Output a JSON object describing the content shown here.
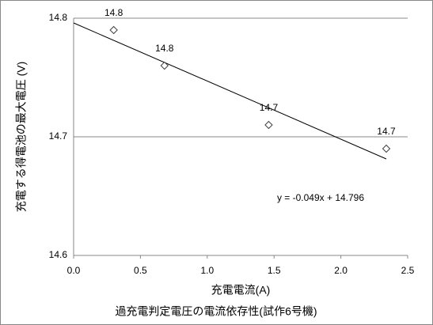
{
  "chart_data": {
    "type": "scatter",
    "title": "過充電判定電圧の電流依存性(試作6号機)",
    "x_label": "充電電流(A)",
    "y_label": "充電する得電池の最大電圧 (V)",
    "x": [
      0.3,
      0.68,
      1.46,
      2.34
    ],
    "values": [
      14.79,
      14.76,
      14.71,
      14.69
    ],
    "value_labels": [
      "14.8",
      "14.8",
      "14.7",
      "14.7"
    ],
    "marker_color": "#404040",
    "trendline": {
      "slope": -0.049,
      "intercept": 14.796,
      "label": "y = -0.049x + 14.796",
      "color": "#000000"
    },
    "xlim": [
      0,
      2.5
    ],
    "xticks": [
      {
        "value": 0,
        "label": "0.0"
      },
      0.5,
      {
        "value": 1,
        "label": "1.0"
      },
      1.5,
      {
        "value": 2,
        "label": "2.0"
      },
      2.5
    ],
    "ylim": [
      14.6,
      14.8
    ],
    "yticks": [
      14.6,
      14.7,
      14.8
    ],
    "grid": true
  }
}
